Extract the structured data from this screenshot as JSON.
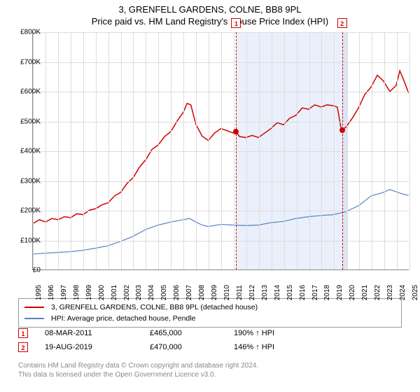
{
  "title": "3, GRENFELL GARDENS, COLNE, BB8 9PL",
  "subtitle": "Price paid vs. HM Land Registry's House Price Index (HPI)",
  "chart": {
    "type": "line",
    "background_color": "#ffffff",
    "grid_color": "#dcdcdc",
    "axis_color": "#888888",
    "ylim": [
      0,
      800000
    ],
    "ytick_step": 100000,
    "y_ticks": [
      "£0",
      "£100K",
      "£200K",
      "£300K",
      "£400K",
      "£500K",
      "£600K",
      "£700K",
      "£800K"
    ],
    "x_years": [
      1995,
      1996,
      1997,
      1998,
      1999,
      2000,
      2001,
      2002,
      2003,
      2004,
      2005,
      2006,
      2007,
      2008,
      2009,
      2010,
      2011,
      2012,
      2013,
      2014,
      2015,
      2016,
      2017,
      2018,
      2019,
      2020,
      2021,
      2022,
      2023,
      2024,
      2025
    ],
    "shaded_bands": [
      {
        "from_year": 2011.19,
        "to_year": 2019.63,
        "color": "#eaf0fb"
      },
      {
        "from_year": 2019.63,
        "to_year": 2020.1,
        "color": "#dce6f7"
      }
    ],
    "series": [
      {
        "name": "price_paid",
        "label": "3, GRENFELL GARDENS, COLNE, BB8 9PL (detached house)",
        "color": "#d00000",
        "line_width": 1.5,
        "data": [
          [
            1995,
            155000
          ],
          [
            1995.5,
            168000
          ],
          [
            1996,
            160000
          ],
          [
            1996.5,
            172000
          ],
          [
            1997,
            168000
          ],
          [
            1997.5,
            178000
          ],
          [
            1998,
            175000
          ],
          [
            1998.5,
            188000
          ],
          [
            1999,
            185000
          ],
          [
            1999.5,
            200000
          ],
          [
            2000,
            205000
          ],
          [
            2000.5,
            218000
          ],
          [
            2001,
            225000
          ],
          [
            2001.5,
            248000
          ],
          [
            2002,
            260000
          ],
          [
            2002.5,
            290000
          ],
          [
            2003,
            310000
          ],
          [
            2003.5,
            345000
          ],
          [
            2004,
            370000
          ],
          [
            2004.5,
            405000
          ],
          [
            2005,
            420000
          ],
          [
            2005.5,
            448000
          ],
          [
            2006,
            465000
          ],
          [
            2006.5,
            500000
          ],
          [
            2007,
            530000
          ],
          [
            2007.3,
            560000
          ],
          [
            2007.6,
            555000
          ],
          [
            2008,
            490000
          ],
          [
            2008.5,
            450000
          ],
          [
            2009,
            435000
          ],
          [
            2009.5,
            460000
          ],
          [
            2010,
            475000
          ],
          [
            2010.5,
            468000
          ],
          [
            2011,
            460000
          ],
          [
            2011.19,
            465000
          ],
          [
            2011.5,
            448000
          ],
          [
            2012,
            445000
          ],
          [
            2012.5,
            452000
          ],
          [
            2013,
            445000
          ],
          [
            2013.5,
            460000
          ],
          [
            2014,
            475000
          ],
          [
            2014.5,
            495000
          ],
          [
            2015,
            488000
          ],
          [
            2015.5,
            510000
          ],
          [
            2016,
            520000
          ],
          [
            2016.5,
            545000
          ],
          [
            2017,
            540000
          ],
          [
            2017.5,
            555000
          ],
          [
            2018,
            548000
          ],
          [
            2018.5,
            555000
          ],
          [
            2019,
            552000
          ],
          [
            2019.3,
            548000
          ],
          [
            2019.63,
            470000
          ],
          [
            2020,
            480000
          ],
          [
            2020.5,
            510000
          ],
          [
            2021,
            545000
          ],
          [
            2021.5,
            590000
          ],
          [
            2022,
            615000
          ],
          [
            2022.5,
            655000
          ],
          [
            2023,
            635000
          ],
          [
            2023.5,
            600000
          ],
          [
            2024,
            620000
          ],
          [
            2024.3,
            670000
          ],
          [
            2024.6,
            640000
          ],
          [
            2025,
            595000
          ]
        ]
      },
      {
        "name": "hpi",
        "label": "HPI: Average price, detached house, Pendle",
        "color": "#5a7fc4",
        "line_width": 1.2,
        "data": [
          [
            1995,
            52000
          ],
          [
            1996,
            55000
          ],
          [
            1997,
            58000
          ],
          [
            1998,
            60000
          ],
          [
            1999,
            65000
          ],
          [
            2000,
            72000
          ],
          [
            2001,
            80000
          ],
          [
            2002,
            95000
          ],
          [
            2003,
            112000
          ],
          [
            2004,
            135000
          ],
          [
            2005,
            150000
          ],
          [
            2006,
            160000
          ],
          [
            2007,
            168000
          ],
          [
            2007.5,
            172000
          ],
          [
            2008,
            160000
          ],
          [
            2008.5,
            150000
          ],
          [
            2009,
            145000
          ],
          [
            2010,
            152000
          ],
          [
            2011,
            150000
          ],
          [
            2012,
            148000
          ],
          [
            2013,
            150000
          ],
          [
            2014,
            158000
          ],
          [
            2015,
            162000
          ],
          [
            2016,
            172000
          ],
          [
            2017,
            178000
          ],
          [
            2018,
            182000
          ],
          [
            2019,
            185000
          ],
          [
            2020,
            195000
          ],
          [
            2021,
            215000
          ],
          [
            2022,
            248000
          ],
          [
            2023,
            260000
          ],
          [
            2023.5,
            270000
          ],
          [
            2024,
            262000
          ],
          [
            2024.5,
            255000
          ],
          [
            2025,
            250000
          ]
        ]
      }
    ],
    "markers": [
      {
        "id": "1",
        "year": 2011.19,
        "price": 465000
      },
      {
        "id": "2",
        "year": 2019.63,
        "price": 470000
      }
    ]
  },
  "legend": {
    "items": [
      {
        "color": "#d00000",
        "label": "3, GRENFELL GARDENS, COLNE, BB8 9PL (detached house)"
      },
      {
        "color": "#5a7fc4",
        "label": "HPI: Average price, detached house, Pendle"
      }
    ]
  },
  "sales": [
    {
      "id": "1",
      "date": "08-MAR-2011",
      "price": "£465,000",
      "pct": "190% ↑ HPI"
    },
    {
      "id": "2",
      "date": "19-AUG-2019",
      "price": "£470,000",
      "pct": "146% ↑ HPI"
    }
  ],
  "footer_line1": "Contains HM Land Registry data © Crown copyright and database right 2024.",
  "footer_line2": "This data is licensed under the Open Government Licence v3.0."
}
